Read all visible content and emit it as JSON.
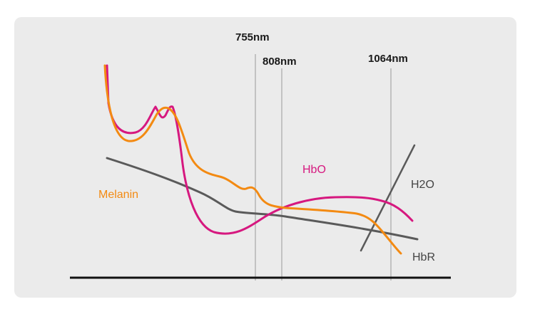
{
  "colors": {
    "background": "#ebebeb",
    "melanin": "#f38a12",
    "hbo": "#d6187f",
    "hbr": "#5a5a5a",
    "h2o": "#5a5a5a",
    "marker": "#9a9a9a",
    "axis": "#111111"
  },
  "chart_data": {
    "type": "line",
    "title": "",
    "xlabel": "",
    "ylabel": "",
    "grid": false,
    "markers": [
      {
        "label": "755nm"
      },
      {
        "label": "808nm"
      },
      {
        "label": "1064nm"
      }
    ],
    "series": [
      {
        "name": "Melanin"
      },
      {
        "name": "HbO"
      },
      {
        "name": "H2O"
      },
      {
        "name": "HbR"
      }
    ]
  }
}
